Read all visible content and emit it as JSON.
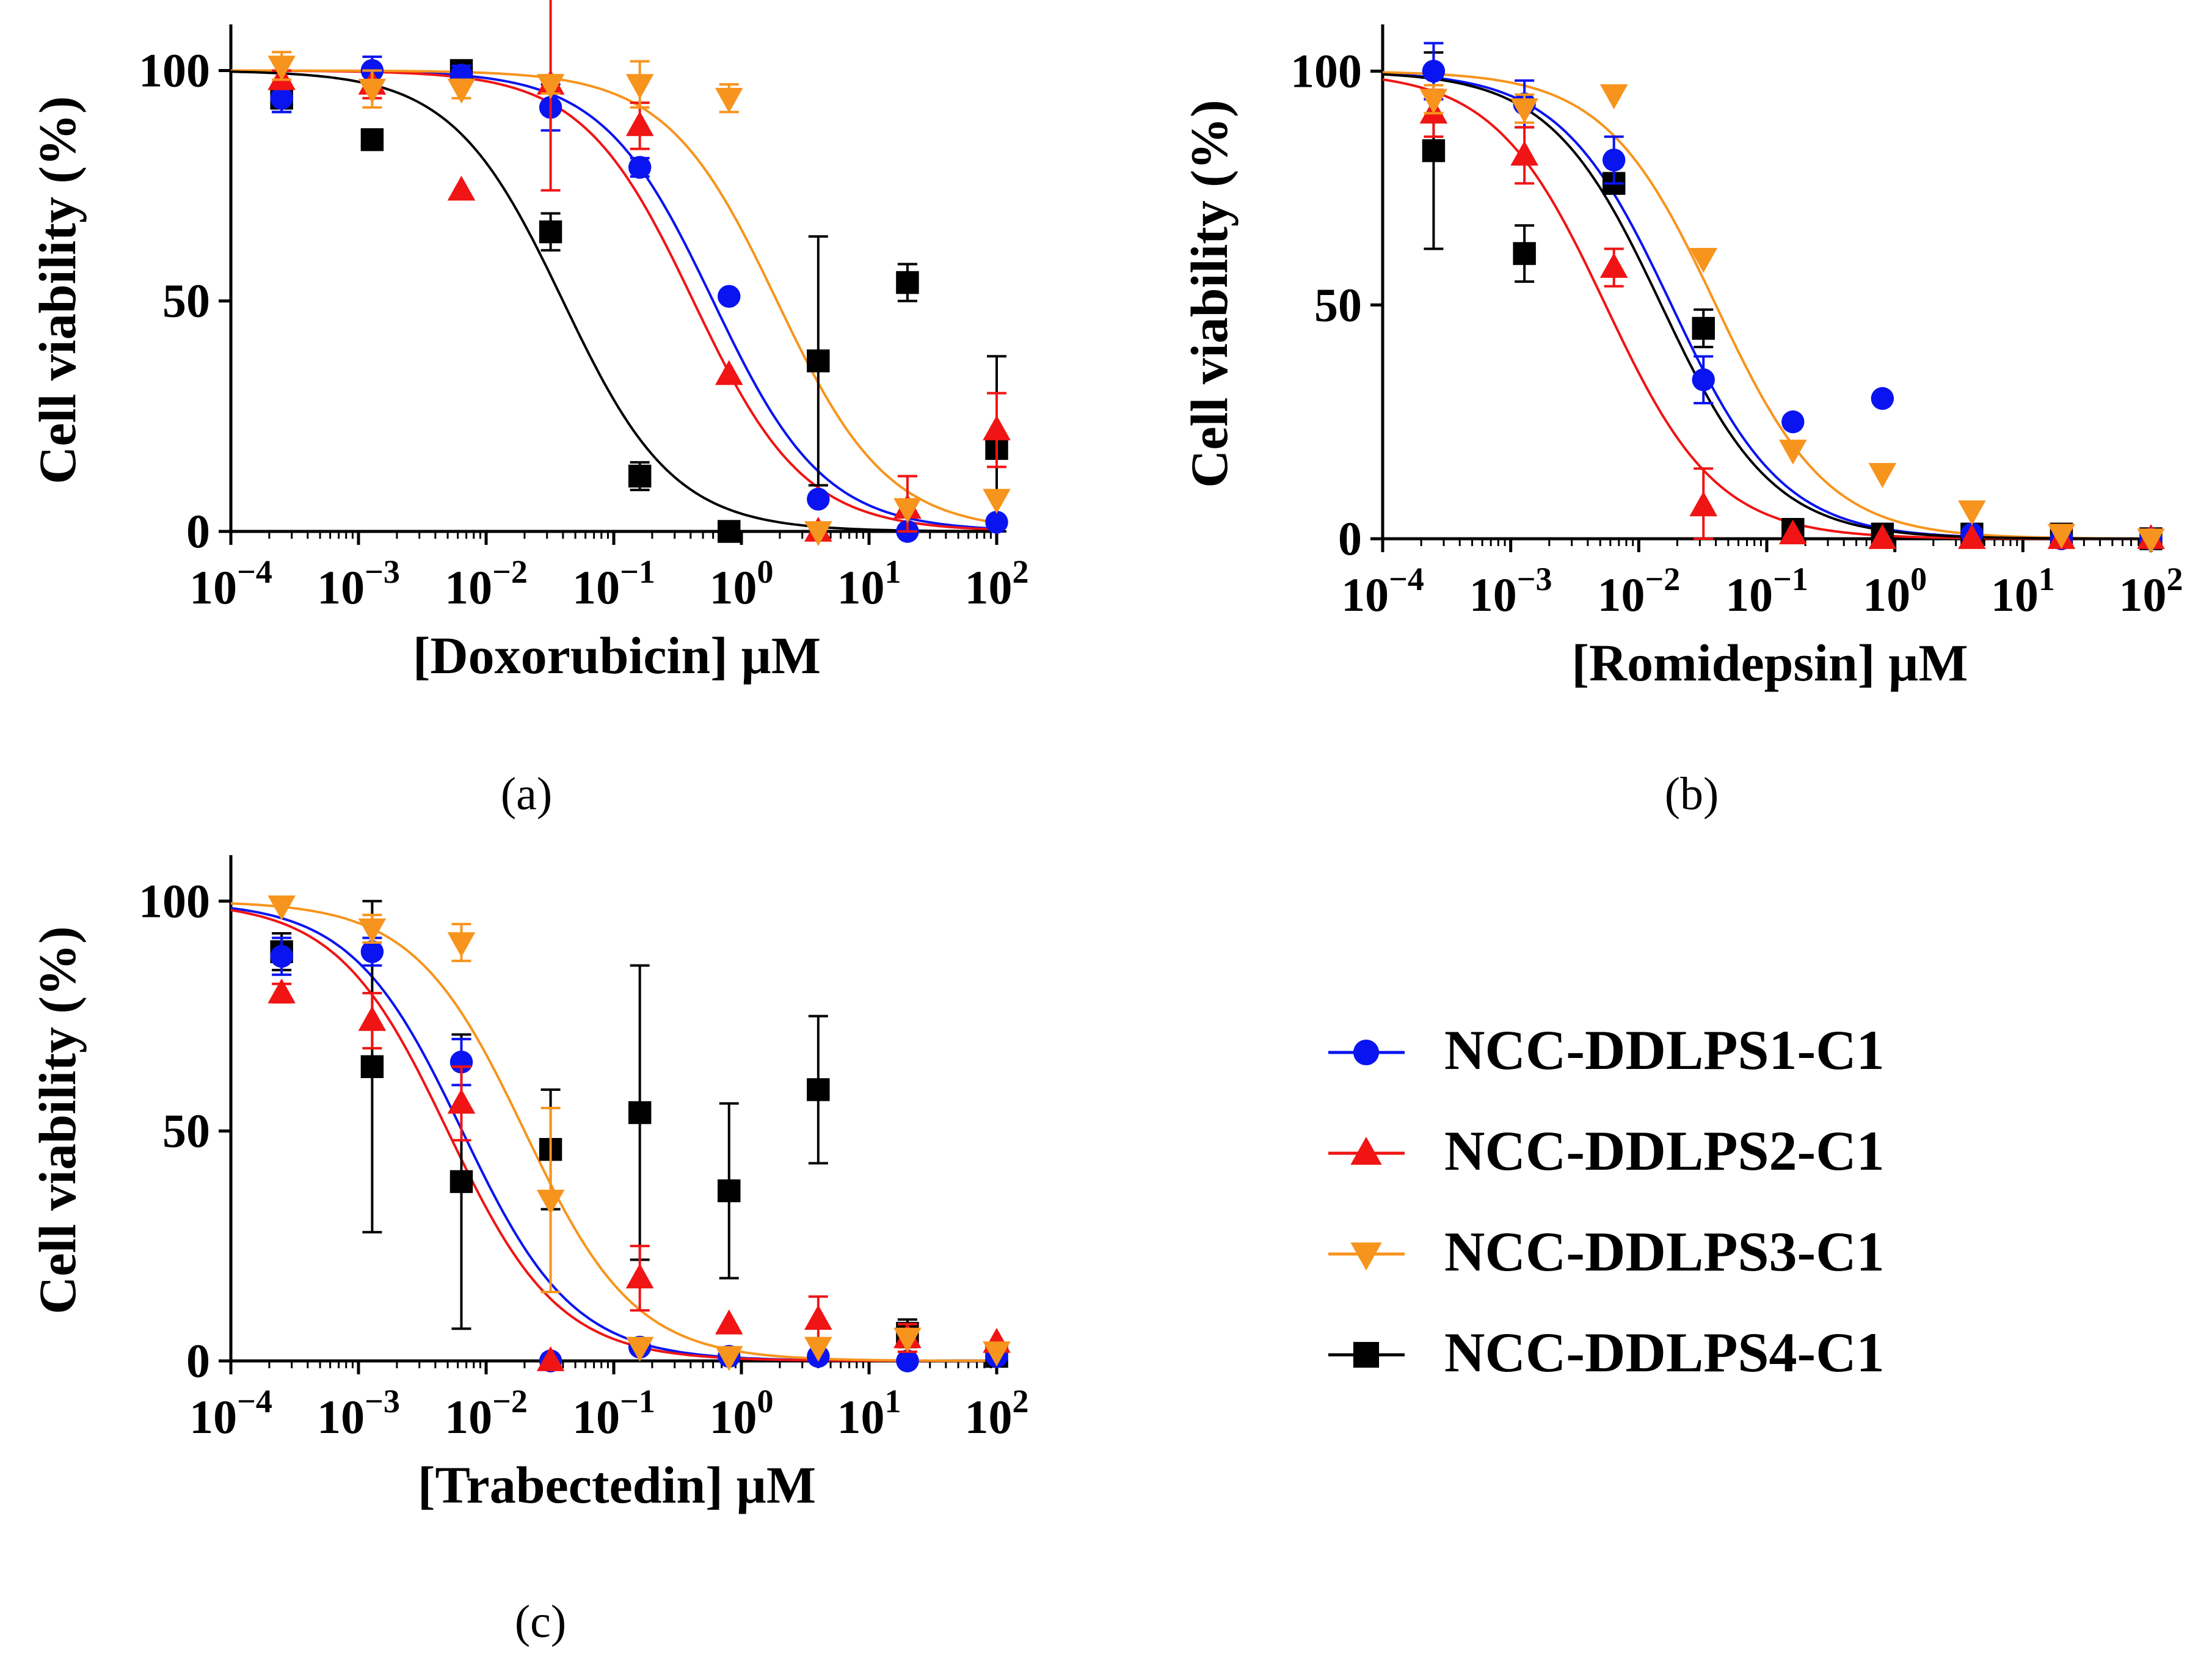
{
  "colors": {
    "NCC-DDLPS1-C1": "#0a14f0",
    "NCC-DDLPS2-C1": "#f01414",
    "NCC-DDLPS3-C1": "#f7941d",
    "NCC-DDLPS4-C1": "#000000",
    "axis": "#000000"
  },
  "legend": {
    "entries": [
      {
        "name": "NCC-DDLPS1-C1",
        "marker": "circle"
      },
      {
        "name": "NCC-DDLPS2-C1",
        "marker": "triangle-up"
      },
      {
        "name": "NCC-DDLPS3-C1",
        "marker": "triangle-down"
      },
      {
        "name": "NCC-DDLPS4-C1",
        "marker": "square"
      }
    ]
  },
  "chart_data": [
    {
      "id": "a",
      "panel_label": "(a)",
      "type": "scatter",
      "scale_x": "log",
      "xlabel": "[Doxorubicin] µM",
      "ylabel": "Cell viability (%)",
      "xlim_log10": [
        -4,
        2
      ],
      "ylim": [
        0,
        110
      ],
      "xtick_exponents": [
        "−4",
        "−3",
        "−2",
        "−1",
        "0",
        "1",
        "2"
      ],
      "ytick_labels": [
        "0",
        "50",
        "100"
      ],
      "series": [
        {
          "name": "NCC-DDLPS1-C1",
          "marker": "circle",
          "x": [
            0.00025,
            0.00128,
            0.0064,
            0.032,
            0.16,
            0.8,
            4.0,
            20,
            100
          ],
          "y": [
            94,
            100,
            99,
            92,
            79,
            51,
            7,
            0,
            2
          ],
          "err": [
            3,
            3,
            2,
            5,
            2,
            1,
            1,
            1,
            1
          ],
          "fit": {
            "ec50": 0.6,
            "hill": 1.0
          }
        },
        {
          "name": "NCC-DDLPS2-C1",
          "marker": "triangle-up",
          "x": [
            0.00025,
            0.00128,
            0.0064,
            0.032,
            0.16,
            0.8,
            4.0,
            20,
            100
          ],
          "y": [
            98,
            97,
            74,
            97,
            88,
            34,
            0,
            5,
            22
          ],
          "err": [
            2,
            3,
            1,
            23,
            5,
            1,
            1,
            7,
            8
          ],
          "fit": {
            "ec50": 0.42,
            "hill": 1.0
          }
        },
        {
          "name": "NCC-DDLPS3-C1",
          "marker": "triangle-down",
          "x": [
            0.00025,
            0.00128,
            0.0064,
            0.032,
            0.16,
            0.8,
            4.0,
            20,
            100
          ],
          "y": [
            101,
            96,
            96,
            97,
            97,
            94,
            0,
            5,
            7
          ],
          "err": [
            3,
            4,
            2,
            2,
            5,
            3,
            1,
            1,
            1
          ],
          "fit": {
            "ec50": 1.9,
            "hill": 1.0
          }
        },
        {
          "name": "NCC-DDLPS4-C1",
          "marker": "square",
          "x": [
            0.00025,
            0.00128,
            0.0064,
            0.032,
            0.16,
            0.8,
            4.0,
            20,
            100
          ],
          "y": [
            94,
            85,
            100,
            65,
            12,
            0,
            37,
            54,
            18
          ],
          "err": [
            3,
            1,
            1,
            4,
            3,
            1,
            27,
            4,
            20
          ],
          "fit": {
            "ec50": 0.04,
            "hill": 1.0
          }
        }
      ]
    },
    {
      "id": "b",
      "panel_label": "(b)",
      "type": "scatter",
      "scale_x": "log",
      "xlabel": "[Romidepsin] µM",
      "ylabel": "Cell viability (%)",
      "xlim_log10": [
        -4,
        2
      ],
      "ylim": [
        0,
        110
      ],
      "xtick_exponents": [
        "−4",
        "−3",
        "−2",
        "−1",
        "0",
        "1",
        "2"
      ],
      "ytick_labels": [
        "0",
        "50",
        "100"
      ],
      "series": [
        {
          "name": "NCC-DDLPS1-C1",
          "marker": "circle",
          "x": [
            0.00025,
            0.00128,
            0.0064,
            0.032,
            0.16,
            0.8,
            4.0,
            20,
            100
          ],
          "y": [
            100,
            93,
            81,
            34,
            25,
            30,
            1,
            0,
            0
          ],
          "err": [
            6,
            5,
            5,
            5,
            1,
            1,
            1,
            1,
            1
          ],
          "fit": {
            "ec50": 0.018,
            "hill": 1.0
          }
        },
        {
          "name": "NCC-DDLPS2-C1",
          "marker": "triangle-up",
          "x": [
            0.00025,
            0.00128,
            0.0064,
            0.032,
            0.16,
            0.8,
            4.0,
            20,
            100
          ],
          "y": [
            91,
            82,
            58,
            7,
            1,
            0,
            0,
            0,
            0
          ],
          "err": [
            5,
            6,
            4,
            8,
            1,
            1,
            1,
            1,
            1
          ],
          "fit": {
            "ec50": 0.0055,
            "hill": 1.0
          }
        },
        {
          "name": "NCC-DDLPS3-C1",
          "marker": "triangle-down",
          "x": [
            0.00025,
            0.00128,
            0.0064,
            0.032,
            0.16,
            0.8,
            4.0,
            20,
            100
          ],
          "y": [
            94,
            92,
            95,
            60,
            19,
            14,
            6,
            1,
            0
          ],
          "err": [
            3,
            3,
            1,
            1,
            1,
            1,
            1,
            1,
            1
          ],
          "fit": {
            "ec50": 0.04,
            "hill": 1.0
          }
        },
        {
          "name": "NCC-DDLPS4-C1",
          "marker": "square",
          "x": [
            0.00025,
            0.00128,
            0.0064,
            0.032,
            0.16,
            0.8,
            4.0,
            20,
            100
          ],
          "y": [
            83,
            61,
            76,
            45,
            2,
            1,
            1,
            1,
            0
          ],
          "err": [
            21,
            6,
            2,
            4,
            1,
            1,
            1,
            1,
            1
          ],
          "fit": {
            "ec50": 0.015,
            "hill": 1.0
          }
        }
      ]
    },
    {
      "id": "c",
      "panel_label": "(c)",
      "type": "scatter",
      "scale_x": "log",
      "xlabel": "[Trabectedin] µM",
      "ylabel": "Cell viability (%)",
      "xlim_log10": [
        -4,
        2
      ],
      "ylim": [
        0,
        110
      ],
      "xtick_exponents": [
        "−4",
        "−3",
        "−2",
        "−1",
        "0",
        "1",
        "2"
      ],
      "ytick_labels": [
        "0",
        "50",
        "100"
      ],
      "series": [
        {
          "name": "NCC-DDLPS1-C1",
          "marker": "circle",
          "x": [
            0.00025,
            0.00128,
            0.0064,
            0.032,
            0.16,
            0.8,
            4.0,
            20,
            100
          ],
          "y": [
            88,
            89,
            65,
            0,
            3,
            1,
            1,
            0,
            1
          ],
          "err": [
            4,
            3,
            5,
            1,
            1,
            1,
            1,
            1,
            1
          ],
          "fit": {
            "ec50": 0.0065,
            "hill": 1.0
          }
        },
        {
          "name": "NCC-DDLPS2-C1",
          "marker": "triangle-up",
          "x": [
            0.00025,
            0.00128,
            0.0064,
            0.032,
            0.16,
            0.8,
            4.0,
            20,
            100
          ],
          "y": [
            80,
            74,
            56,
            0,
            18,
            8,
            9,
            5,
            4
          ],
          "err": [
            2,
            6,
            8,
            1,
            7,
            1,
            5,
            3,
            1
          ],
          "fit": {
            "ec50": 0.005,
            "hill": 1.0
          }
        },
        {
          "name": "NCC-DDLPS3-C1",
          "marker": "triangle-down",
          "x": [
            0.00025,
            0.00128,
            0.0064,
            0.032,
            0.16,
            0.8,
            4.0,
            20,
            100
          ],
          "y": [
            99,
            94,
            91,
            35,
            3,
            1,
            3,
            5,
            2
          ],
          "err": [
            1,
            3,
            4,
            20,
            1,
            1,
            1,
            1,
            1
          ],
          "fit": {
            "ec50": 0.02,
            "hill": 1.0
          }
        },
        {
          "name": "NCC-DDLPS4-C1",
          "marker": "square",
          "x": [
            0.00025,
            0.00128,
            0.0064,
            0.032,
            0.16,
            0.8,
            4.0,
            20,
            100
          ],
          "y": [
            89,
            64,
            39,
            46,
            54,
            37,
            59,
            6,
            1
          ],
          "err": [
            4,
            36,
            32,
            13,
            32,
            19,
            16,
            3,
            1
          ],
          "fit": null
        }
      ]
    }
  ]
}
